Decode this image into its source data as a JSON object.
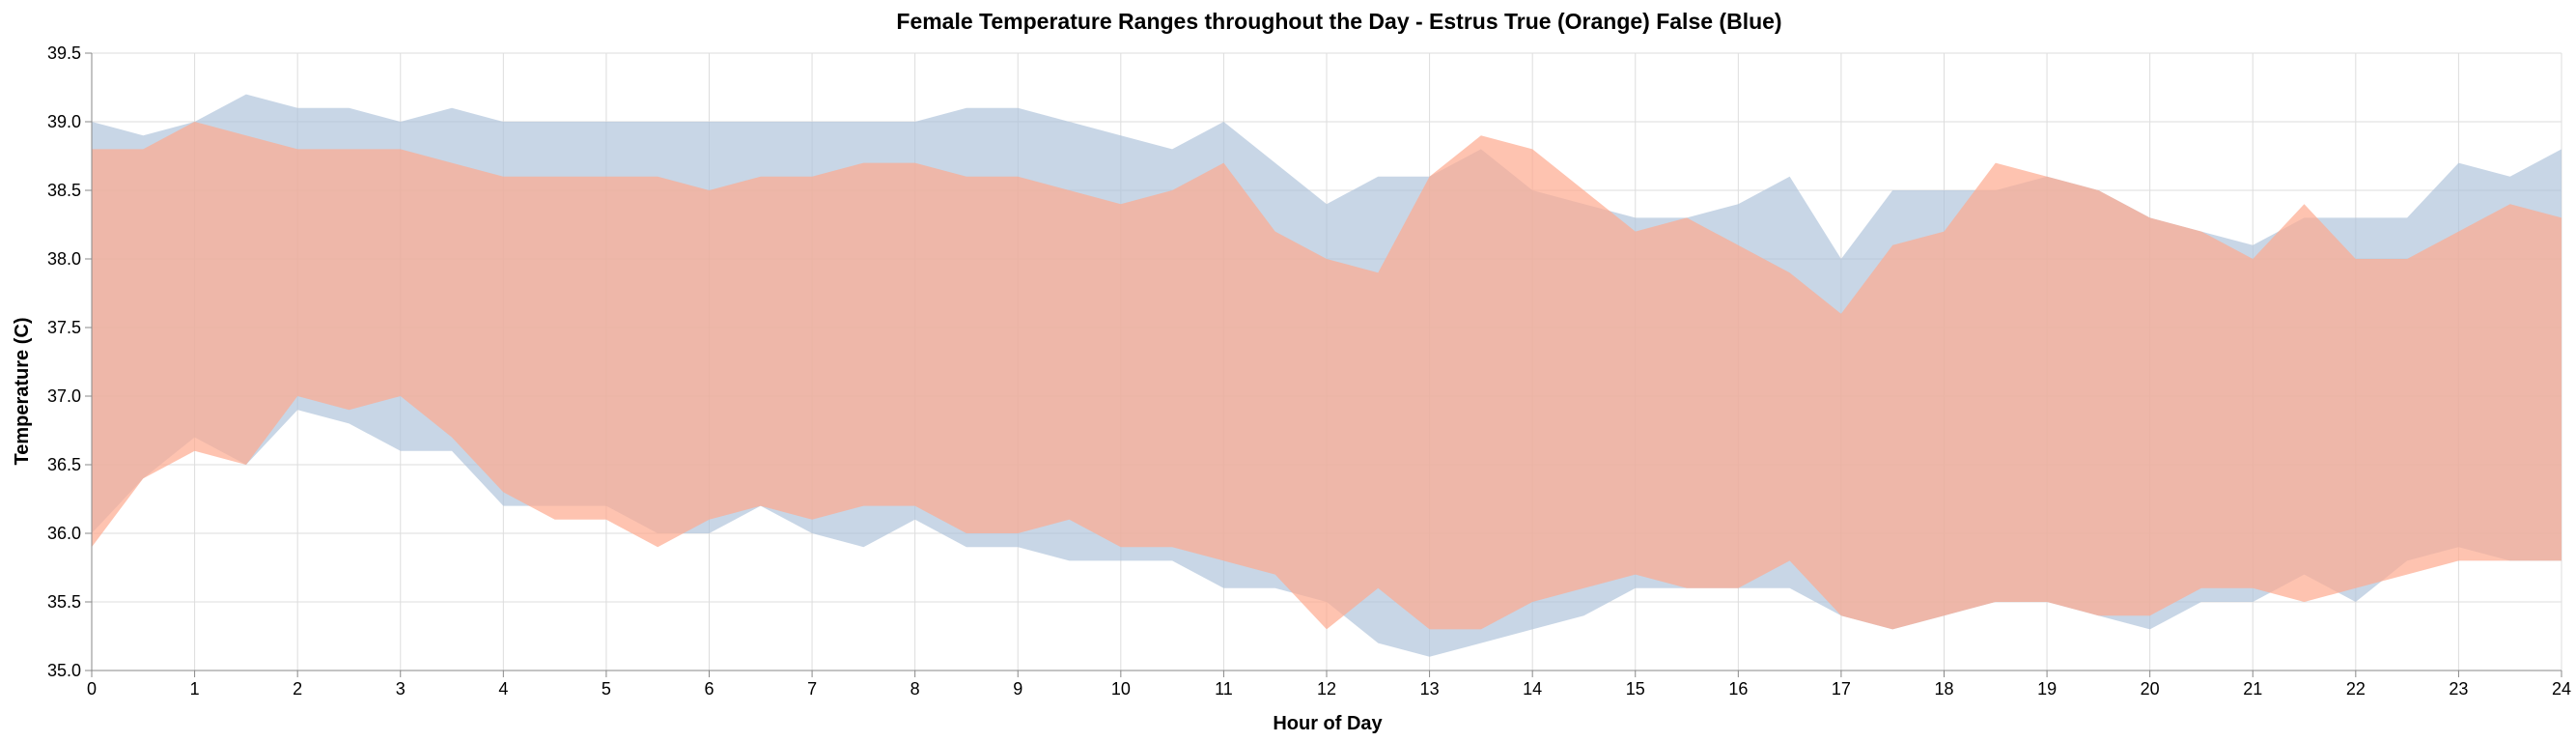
{
  "chart_data": {
    "type": "area",
    "title": "Female Temperature Ranges throughout the Day - Estrus True (Orange) False (Blue)",
    "xlabel": "Hour of Day",
    "ylabel": "Temperature (C)",
    "xlim": [
      0,
      24
    ],
    "ylim": [
      35.0,
      39.5
    ],
    "x_ticks": [
      "0",
      "1",
      "2",
      "3",
      "4",
      "5",
      "6",
      "7",
      "8",
      "9",
      "10",
      "11",
      "12",
      "13",
      "14",
      "15",
      "16",
      "17",
      "18",
      "19",
      "20",
      "21",
      "22",
      "23",
      "24"
    ],
    "y_ticks": [
      "35.0",
      "35.5",
      "36.0",
      "36.5",
      "37.0",
      "37.5",
      "38.0",
      "38.5",
      "39.0",
      "39.5"
    ],
    "grid": true,
    "series": [
      {
        "color": "#aec3da",
        "x": [
          0,
          0.5,
          1,
          1.5,
          2,
          2.5,
          3,
          3.5,
          4,
          4.5,
          5,
          5.5,
          6,
          6.5,
          7,
          7.5,
          8,
          8.5,
          9,
          9.5,
          10,
          10.5,
          11,
          11.5,
          12,
          12.5,
          13,
          13.5,
          14,
          14.5,
          15,
          15.5,
          16,
          16.5,
          17,
          17.5,
          18,
          18.5,
          19,
          19.5,
          20,
          20.5,
          21,
          21.5,
          22,
          22.5,
          23,
          23.5,
          24
        ],
        "low": [
          36.0,
          36.4,
          36.7,
          36.5,
          36.9,
          36.8,
          36.6,
          36.6,
          36.2,
          36.2,
          36.2,
          36.0,
          36.0,
          36.2,
          36.0,
          35.9,
          36.1,
          35.9,
          35.9,
          35.8,
          35.8,
          35.8,
          35.6,
          35.6,
          35.5,
          35.2,
          35.1,
          35.2,
          35.3,
          35.4,
          35.6,
          35.6,
          35.6,
          35.6,
          35.4,
          35.3,
          35.4,
          35.5,
          35.5,
          35.4,
          35.3,
          35.5,
          35.5,
          35.7,
          35.5,
          35.8,
          35.9,
          35.8,
          35.8
        ],
        "high": [
          39.0,
          38.9,
          39.0,
          39.2,
          39.1,
          39.1,
          39.0,
          39.1,
          39.0,
          39.0,
          39.0,
          39.0,
          39.0,
          39.0,
          39.0,
          39.0,
          39.0,
          39.1,
          39.1,
          39.0,
          38.9,
          38.8,
          39.0,
          38.7,
          38.4,
          38.6,
          38.6,
          38.8,
          38.5,
          38.4,
          38.3,
          38.3,
          38.4,
          38.6,
          38.0,
          38.5,
          38.5,
          38.5,
          38.6,
          38.5,
          38.3,
          38.2,
          38.1,
          38.3,
          38.3,
          38.3,
          38.7,
          38.6,
          38.8
        ]
      },
      {
        "color": "#fdaa8e",
        "x": [
          0,
          0.5,
          1,
          1.5,
          2,
          2.5,
          3,
          3.5,
          4,
          4.5,
          5,
          5.5,
          6,
          6.5,
          7,
          7.5,
          8,
          8.5,
          9,
          9.5,
          10,
          10.5,
          11,
          11.5,
          12,
          12.5,
          13,
          13.5,
          14,
          14.5,
          15,
          15.5,
          16,
          16.5,
          17,
          17.5,
          18,
          18.5,
          19,
          19.5,
          20,
          20.5,
          21,
          21.5,
          22,
          22.5,
          23,
          23.5,
          24
        ],
        "low": [
          35.9,
          36.4,
          36.6,
          36.5,
          37.0,
          36.9,
          37.0,
          36.7,
          36.3,
          36.1,
          36.1,
          35.9,
          36.1,
          36.2,
          36.1,
          36.2,
          36.2,
          36.0,
          36.0,
          36.1,
          35.9,
          35.9,
          35.8,
          35.7,
          35.3,
          35.6,
          35.3,
          35.3,
          35.5,
          35.6,
          35.7,
          35.6,
          35.6,
          35.8,
          35.4,
          35.3,
          35.4,
          35.5,
          35.5,
          35.4,
          35.4,
          35.6,
          35.6,
          35.5,
          35.6,
          35.7,
          35.8,
          35.8,
          35.8
        ],
        "high": [
          38.8,
          38.8,
          39.0,
          38.9,
          38.8,
          38.8,
          38.8,
          38.7,
          38.6,
          38.6,
          38.6,
          38.6,
          38.5,
          38.6,
          38.6,
          38.7,
          38.7,
          38.6,
          38.6,
          38.5,
          38.4,
          38.5,
          38.7,
          38.2,
          38.0,
          37.9,
          38.6,
          38.9,
          38.8,
          38.5,
          38.2,
          38.3,
          38.1,
          37.9,
          37.6,
          38.1,
          38.2,
          38.7,
          38.6,
          38.5,
          38.3,
          38.2,
          38.0,
          38.4,
          38.0,
          38.0,
          38.2,
          38.4,
          38.3
        ]
      }
    ]
  }
}
